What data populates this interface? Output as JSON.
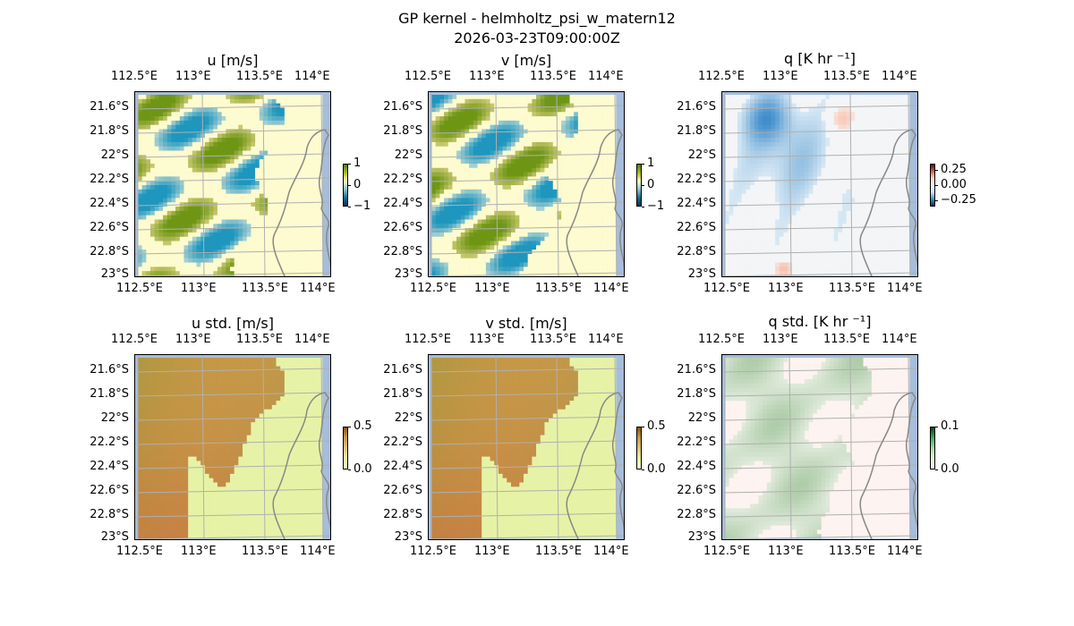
{
  "figure": {
    "title": "GP kernel - helmholtz_psi_w_matern12",
    "subtitle": "2026-03-23T09:00:00Z"
  },
  "axes_ticks": {
    "x_top": [
      "112.5°E",
      "113°E",
      "113.5°E",
      "114°E"
    ],
    "x_bottom": [
      "112.5°E",
      "113°E",
      "113.5°E",
      "114°E"
    ],
    "y": [
      "21.6°S",
      "21.8°S",
      "22°S",
      "22.2°S",
      "22.4°S",
      "22.6°S",
      "22.8°S",
      "23°S"
    ]
  },
  "chart_data": [
    {
      "type": "heatmap",
      "title": "u [m/s]",
      "colormap": "BrBG-like diverging (teal / olive / pale yellow)",
      "colorbar": {
        "ticks": [
          "1",
          "0",
          "−1"
        ],
        "range": [
          -1,
          1
        ]
      },
      "grid": true,
      "coastline": true
    },
    {
      "type": "heatmap",
      "title": "v [m/s]",
      "colormap": "BrBG-like diverging (teal / olive / pale yellow)",
      "colorbar": {
        "ticks": [
          "1",
          "0",
          "−1"
        ],
        "range": [
          -1,
          1
        ]
      },
      "grid": true,
      "coastline": true
    },
    {
      "type": "heatmap",
      "title": "q [K hr ⁻¹]",
      "colormap": "RdBu-like diverging (blue / white / red)",
      "colorbar": {
        "ticks": [
          "0.25",
          "0.00",
          "−0.25"
        ],
        "range": [
          -0.35,
          0.35
        ]
      },
      "grid": true,
      "coastline": true
    },
    {
      "type": "heatmap",
      "title": "u std. [m/s]",
      "colormap": "brown / light green",
      "colorbar": {
        "ticks": [
          "0.5",
          "0.0"
        ],
        "range": [
          0,
          0.5
        ]
      },
      "grid": true,
      "coastline": true
    },
    {
      "type": "heatmap",
      "title": "v std. [m/s]",
      "colormap": "brown / light green",
      "colorbar": {
        "ticks": [
          "0.5",
          "0.0"
        ],
        "range": [
          0,
          0.5
        ]
      },
      "grid": true,
      "coastline": true
    },
    {
      "type": "heatmap",
      "title": "q std. [K hr ⁻¹]",
      "colormap": "green / pale pink",
      "colorbar": {
        "ticks": [
          "0.1",
          "0.0"
        ],
        "range": [
          0,
          0.1
        ]
      },
      "grid": true,
      "coastline": true
    }
  ],
  "colors": {
    "ocean": "#a6bddb",
    "grid": "#b0b0b0",
    "coast": "#888888"
  }
}
